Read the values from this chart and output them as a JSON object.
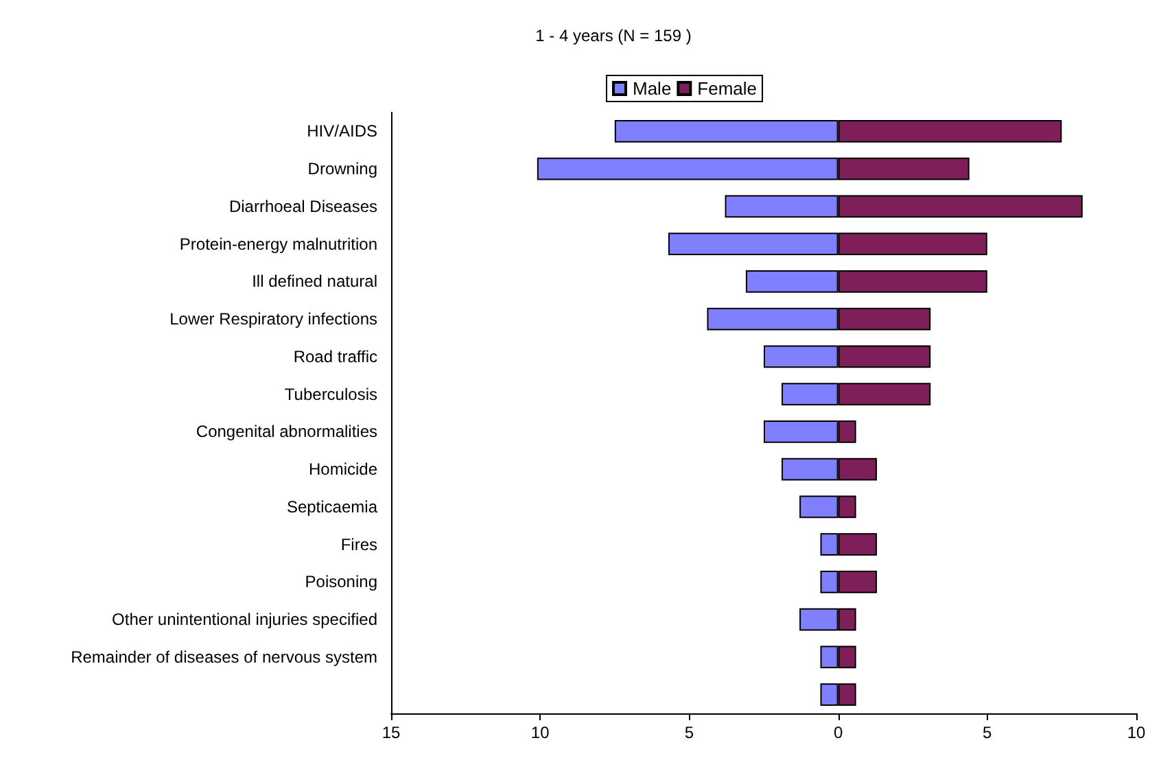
{
  "chart_data": {
    "type": "bar",
    "orientation": "horizontal",
    "title": "1 - 4 years (N = 159 )",
    "categories": [
      "HIV/AIDS",
      "Drowning",
      "Diarrhoeal Diseases",
      "Protein-energy malnutrition",
      "Ill defined natural",
      "Lower Respiratory infections",
      "Road traffic",
      "Tuberculosis",
      "Congenital abnormalities",
      "Homicide",
      "Septicaemia",
      "Fires",
      "Poisoning",
      "Other unintentional injuries specified",
      "Remainder of diseases of nervous system",
      null
    ],
    "series": [
      {
        "name": "Male",
        "color": "#8080ff",
        "values": [
          -7.5,
          -10.1,
          -3.8,
          -5.7,
          -3.1,
          -4.4,
          -2.5,
          -1.9,
          -2.5,
          -1.9,
          -1.3,
          -0.6,
          -0.6,
          -1.3,
          -0.6,
          -0.6
        ]
      },
      {
        "name": "Female",
        "color": "#7f1f5a",
        "values": [
          7.5,
          4.4,
          8.2,
          5.0,
          5.0,
          3.1,
          3.1,
          3.1,
          0.6,
          1.3,
          0.6,
          1.3,
          1.3,
          0.6,
          0.6,
          0.6
        ]
      }
    ],
    "xlim": [
      -15,
      10
    ],
    "xticks": [
      {
        "value": -15,
        "label": "15"
      },
      {
        "value": -10,
        "label": "10"
      },
      {
        "value": -5,
        "label": "5"
      },
      0,
      5,
      10
    ],
    "stacked": true,
    "grid": false,
    "legend": "top"
  }
}
